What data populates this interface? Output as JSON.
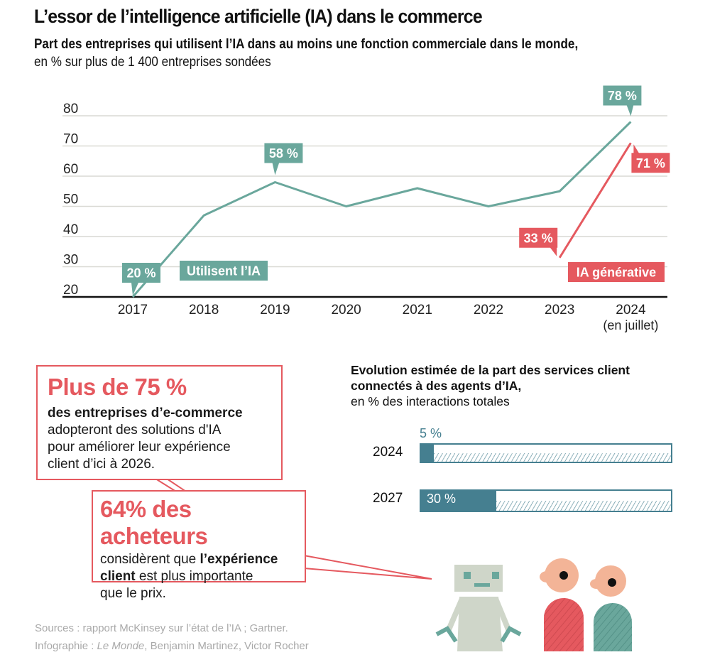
{
  "header": {
    "title": "L’essor de l’intelligence artificielle (IA) dans le commerce",
    "subtitle_bold": "Part des entreprises qui utilisent l’IA dans au moins une fonction commerciale dans le monde,",
    "subtitle_regular": " en % sur plus de 1 400 entreprises sondées"
  },
  "colors": {
    "teal": "#6aa79c",
    "red": "#e5595f",
    "bar_blue": "#457f90",
    "grid": "#d9d9d4",
    "source_gray": "#a9a9a9"
  },
  "chart_data": [
    {
      "type": "line",
      "title": "Part des entreprises qui utilisent l’IA dans au moins une fonction commerciale dans le monde",
      "xlabel": "",
      "ylabel": "%",
      "x": [
        "2017",
        "2018",
        "2019",
        "2020",
        "2021",
        "2022",
        "2023",
        "2024"
      ],
      "x_sublabels": [
        "",
        "",
        "",
        "",
        "",
        "",
        "",
        "(en juillet)"
      ],
      "yticks": [
        "20",
        "30",
        "40",
        "50",
        "60",
        "70",
        "80"
      ],
      "ylim": [
        20,
        80
      ],
      "grid": true,
      "series": [
        {
          "name": "Utilisent l’IA",
          "color": "#6aa79c",
          "values": [
            20,
            47,
            58,
            50,
            56,
            50,
            55,
            78
          ],
          "labels": [
            {
              "index": 0,
              "text": "20 %"
            },
            {
              "index": 2,
              "text": "58 %"
            },
            {
              "index": 7,
              "text": "78 %"
            }
          ]
        },
        {
          "name": "IA générative",
          "color": "#e5595f",
          "values": [
            null,
            null,
            null,
            null,
            null,
            null,
            33,
            71
          ],
          "labels": [
            {
              "index": 6,
              "text": "33 %"
            },
            {
              "index": 7,
              "text": "71 %"
            }
          ]
        }
      ]
    },
    {
      "type": "bar",
      "title": "Evolution estimée de la part des services client connectés à des agents d’IA,",
      "subtitle": "en % des interactions totales",
      "categories": [
        "2024",
        "2027"
      ],
      "values": [
        5,
        30
      ],
      "value_labels": [
        "5 %",
        "30 %"
      ],
      "ylim": [
        0,
        100
      ]
    }
  ],
  "callouts": [
    {
      "headline": "Plus de 75 %",
      "bold": "des entreprises d’e-commerce",
      "lines": [
        "adopteront des solutions d'IA",
        "pour améliorer leur expérience",
        "client d’ici à 2026."
      ]
    },
    {
      "headline": "64% des acheteurs",
      "pre": "considèrent que ",
      "bold1": "l’expérience",
      "bold2": "client",
      "post": " est plus importante",
      "last": "que le prix."
    }
  ],
  "footer": {
    "sources": "Sources : rapport McKinsey sur l’état de l’IA ; Gartner.",
    "credit_prefix": "Infographie : ",
    "credit_italic": "Le Monde",
    "credit_suffix": ", Benjamin Martinez, Victor Rocher"
  }
}
